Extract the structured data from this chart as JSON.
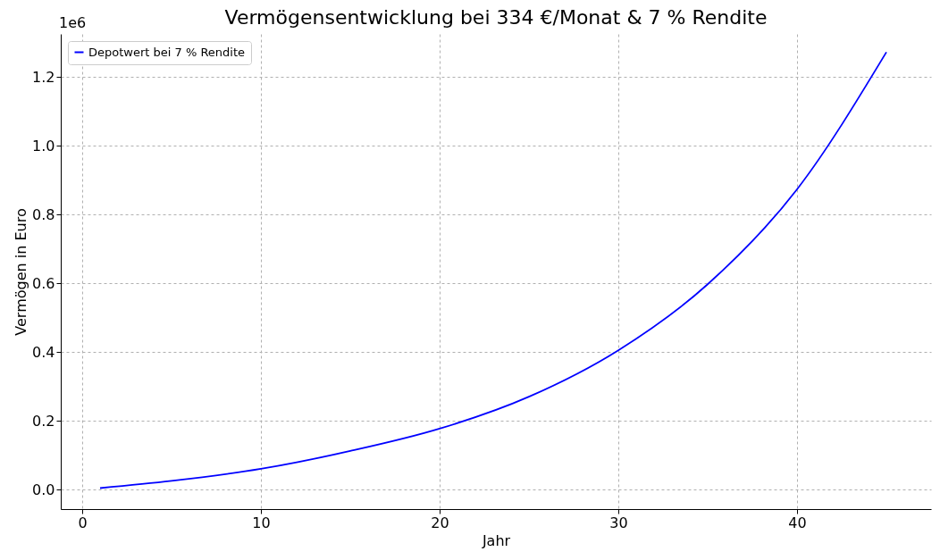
{
  "chart_data": {
    "type": "line",
    "title": "Vermögensentwicklung bei 334 €/Monat & 7 % Rendite",
    "xlabel": "Jahr",
    "ylabel": "Vermögen in Euro",
    "x": [
      1,
      5,
      10,
      15,
      20,
      25,
      30,
      35,
      40,
      45
    ],
    "series": [
      {
        "name": "Depotwert bei 7 % Rendite",
        "color": "#0000ff",
        "values": [
          0.004,
          0.025,
          0.06,
          0.112,
          0.177,
          0.27,
          0.405,
          0.597,
          0.873,
          1.272
        ]
      }
    ],
    "xlim": [
      -1.2,
      47.5
    ],
    "xticks": [
      0,
      10,
      20,
      30,
      40
    ],
    "ylim": [
      -0.057,
      1.325
    ],
    "yticks": [
      {
        "value": 0,
        "label": "0.0"
      },
      0.2,
      0.4,
      0.6,
      0.8,
      {
        "value": 1,
        "label": "1.0"
      },
      1.2
    ],
    "grid": true,
    "legend": "top left",
    "annotations": [
      "1e6"
    ]
  }
}
